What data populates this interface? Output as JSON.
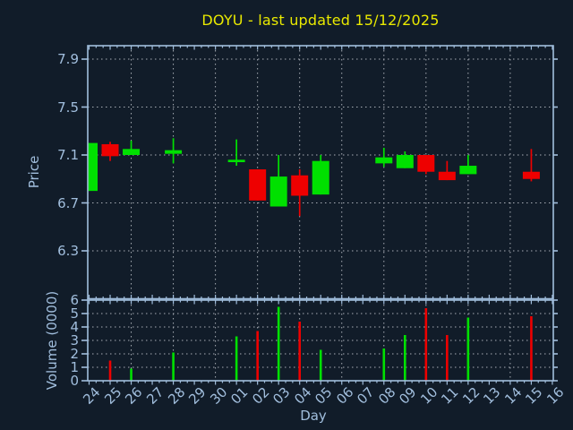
{
  "window": {
    "title": "DOYU - last updated 15/12/2025"
  },
  "colors": {
    "background": "#111c29",
    "frame": "#a1bedd",
    "text": "#a1bedd",
    "grid": "#a8adb5",
    "title": "#e9e900",
    "up": "#00e000",
    "down": "#ee0000"
  },
  "chart_data": [
    {
      "type": "candlestick",
      "title": "DOYU - last updated 15/12/2025",
      "ylabel": "Price",
      "yticks": [
        7.9,
        7.5,
        7.1,
        6.7,
        6.3
      ],
      "ylim": [
        5.9,
        8.01
      ],
      "grid": "dotted",
      "x_categories": [
        "24",
        "25",
        "26",
        "27",
        "28",
        "29",
        "30",
        "01",
        "02",
        "03",
        "04",
        "05",
        "06",
        "07",
        "08",
        "09",
        "10",
        "11",
        "12",
        "13",
        "14",
        "15",
        "16"
      ],
      "series": [
        {
          "day": "24",
          "open": 6.8,
          "high": 7.2,
          "low": 6.8,
          "close": 7.2
        },
        {
          "day": "25",
          "open": 7.19,
          "high": 7.21,
          "low": 7.05,
          "close": 7.09
        },
        {
          "day": "26",
          "open": 7.1,
          "high": 7.22,
          "low": 7.1,
          "close": 7.15
        },
        {
          "day": "28",
          "open": 7.11,
          "high": 7.24,
          "low": 7.03,
          "close": 7.14
        },
        {
          "day": "01",
          "open": 7.04,
          "high": 7.23,
          "low": 7.01,
          "close": 7.06
        },
        {
          "day": "02",
          "open": 6.98,
          "high": 6.98,
          "low": 6.72,
          "close": 6.72
        },
        {
          "day": "03",
          "open": 6.67,
          "high": 7.1,
          "low": 6.67,
          "close": 6.92
        },
        {
          "day": "04",
          "open": 6.93,
          "high": 6.98,
          "low": 6.59,
          "close": 6.76
        },
        {
          "day": "05",
          "open": 6.77,
          "high": 7.1,
          "low": 6.77,
          "close": 7.05
        },
        {
          "day": "08",
          "open": 7.03,
          "high": 7.16,
          "low": 7.0,
          "close": 7.08
        },
        {
          "day": "09",
          "open": 6.99,
          "high": 7.13,
          "low": 6.99,
          "close": 7.1
        },
        {
          "day": "10",
          "open": 7.1,
          "high": 7.1,
          "low": 6.94,
          "close": 6.96
        },
        {
          "day": "11",
          "open": 6.96,
          "high": 7.05,
          "low": 6.89,
          "close": 6.89
        },
        {
          "day": "12",
          "open": 6.94,
          "high": 7.1,
          "low": 6.94,
          "close": 7.01
        },
        {
          "day": "15",
          "open": 6.96,
          "high": 7.15,
          "low": 6.88,
          "close": 6.9
        }
      ]
    },
    {
      "type": "bar",
      "ylabel": "Volume (0000)",
      "xlabel": "Day",
      "yticks": [
        0,
        1,
        2,
        3,
        4,
        5,
        6
      ],
      "ylim": [
        0,
        6
      ],
      "grid": "dotted",
      "x_categories": [
        "24",
        "25",
        "26",
        "27",
        "28",
        "29",
        "30",
        "01",
        "02",
        "03",
        "04",
        "05",
        "06",
        "07",
        "08",
        "09",
        "10",
        "11",
        "12",
        "13",
        "14",
        "15",
        "16"
      ],
      "values": [
        {
          "day": "25",
          "value": 1.5,
          "dir": "down"
        },
        {
          "day": "26",
          "value": 0.9,
          "dir": "up"
        },
        {
          "day": "28",
          "value": 2.1,
          "dir": "up"
        },
        {
          "day": "01",
          "value": 3.3,
          "dir": "up"
        },
        {
          "day": "02",
          "value": 3.7,
          "dir": "down"
        },
        {
          "day": "03",
          "value": 5.5,
          "dir": "up"
        },
        {
          "day": "04",
          "value": 4.4,
          "dir": "down"
        },
        {
          "day": "05",
          "value": 2.3,
          "dir": "up"
        },
        {
          "day": "08",
          "value": 2.4,
          "dir": "up"
        },
        {
          "day": "09",
          "value": 3.4,
          "dir": "up"
        },
        {
          "day": "10",
          "value": 5.4,
          "dir": "down"
        },
        {
          "day": "11",
          "value": 3.4,
          "dir": "down"
        },
        {
          "day": "12",
          "value": 4.7,
          "dir": "up"
        },
        {
          "day": "15",
          "value": 4.8,
          "dir": "down"
        }
      ]
    }
  ]
}
